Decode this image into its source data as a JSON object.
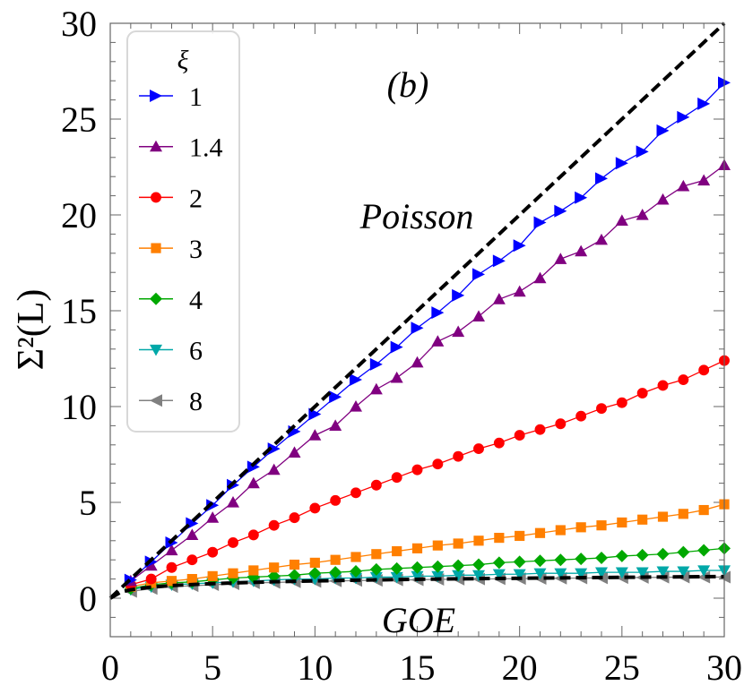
{
  "chart_data": {
    "type": "line",
    "title": "(b)",
    "xlabel": "",
    "ylabel": "Σ²(L)",
    "xlim": [
      0,
      30
    ],
    "ylim": [
      -2,
      30
    ],
    "x_ticks": [
      "0",
      "5",
      "10",
      "15",
      "20",
      "25",
      "30"
    ],
    "y_ticks": [
      "0",
      "5",
      "10",
      "15",
      "20",
      "25",
      "30"
    ],
    "grid": false,
    "legend": {
      "title": "ξ",
      "placement": "top-left"
    },
    "annotations": {
      "panel": "(b)",
      "poisson": "Poisson",
      "goe": "GOE"
    },
    "x": [
      1,
      2,
      3,
      4,
      5,
      6,
      7,
      8,
      9,
      10,
      11,
      12,
      13,
      14,
      15,
      16,
      17,
      18,
      19,
      20,
      21,
      22,
      23,
      24,
      25,
      26,
      27,
      28,
      29,
      30
    ],
    "series": [
      {
        "name": "1",
        "color": "#0000ff",
        "marker": "triangle-right",
        "values": [
          0.95,
          1.9,
          2.9,
          3.9,
          4.85,
          5.9,
          6.85,
          7.8,
          8.7,
          9.6,
          10.5,
          11.4,
          12.2,
          13.1,
          14.1,
          14.9,
          15.8,
          16.9,
          17.6,
          18.4,
          19.6,
          20.2,
          20.9,
          21.9,
          22.7,
          23.3,
          24.4,
          25.1,
          25.8,
          26.9
        ]
      },
      {
        "name": "1.4",
        "color": "#800080",
        "marker": "triangle-up",
        "values": [
          0.9,
          1.7,
          2.5,
          3.3,
          4.2,
          5.0,
          6.0,
          6.7,
          7.6,
          8.5,
          9.0,
          10.0,
          10.9,
          11.5,
          12.3,
          13.4,
          13.9,
          14.7,
          15.6,
          16.0,
          16.7,
          17.7,
          18.1,
          18.7,
          19.7,
          20.0,
          20.8,
          21.5,
          21.8,
          22.6
        ]
      },
      {
        "name": "2",
        "color": "#ff0000",
        "marker": "circle",
        "values": [
          0.7,
          1.0,
          1.6,
          2.0,
          2.4,
          2.9,
          3.3,
          3.8,
          4.2,
          4.7,
          5.1,
          5.5,
          5.9,
          6.3,
          6.7,
          7.0,
          7.4,
          7.8,
          8.1,
          8.5,
          8.8,
          9.1,
          9.5,
          9.9,
          10.2,
          10.7,
          11.1,
          11.4,
          11.9,
          12.4
        ]
      },
      {
        "name": "3",
        "color": "#ff7f00",
        "marker": "square",
        "values": [
          0.6,
          0.8,
          0.9,
          1.0,
          1.15,
          1.3,
          1.45,
          1.6,
          1.75,
          1.85,
          2.0,
          2.15,
          2.3,
          2.45,
          2.6,
          2.75,
          2.85,
          3.0,
          3.15,
          3.25,
          3.4,
          3.55,
          3.7,
          3.8,
          3.95,
          4.1,
          4.25,
          4.4,
          4.6,
          4.9
        ]
      },
      {
        "name": "4",
        "color": "#00a800",
        "marker": "diamond",
        "values": [
          0.5,
          0.7,
          0.8,
          0.85,
          0.95,
          1.05,
          1.1,
          1.15,
          1.2,
          1.3,
          1.35,
          1.4,
          1.5,
          1.55,
          1.6,
          1.65,
          1.7,
          1.75,
          1.85,
          1.9,
          1.95,
          2.0,
          2.05,
          2.1,
          2.2,
          2.25,
          2.3,
          2.4,
          2.5,
          2.6
        ]
      },
      {
        "name": "6",
        "color": "#00a8a8",
        "marker": "triangle-down",
        "values": [
          0.45,
          0.6,
          0.7,
          0.75,
          0.8,
          0.85,
          0.9,
          0.95,
          1.0,
          1.0,
          1.05,
          1.05,
          1.1,
          1.1,
          1.15,
          1.15,
          1.2,
          1.2,
          1.25,
          1.25,
          1.3,
          1.3,
          1.3,
          1.35,
          1.35,
          1.35,
          1.4,
          1.4,
          1.45,
          1.45
        ]
      },
      {
        "name": "8",
        "color": "#808080",
        "marker": "triangle-left",
        "values": [
          0.35,
          0.5,
          0.6,
          0.65,
          0.7,
          0.75,
          0.8,
          0.82,
          0.85,
          0.87,
          0.9,
          0.92,
          0.93,
          0.95,
          0.96,
          0.98,
          0.99,
          1.0,
          1.01,
          1.02,
          1.03,
          1.04,
          1.05,
          1.06,
          1.07,
          1.08,
          1.09,
          1.1,
          1.1,
          1.1
        ]
      }
    ],
    "reference_lines": [
      {
        "name": "Poisson",
        "style": "dashed",
        "color": "#000000",
        "x": [
          0,
          30
        ],
        "y": [
          0,
          30
        ]
      },
      {
        "name": "GOE",
        "style": "dashed",
        "color": "#000000",
        "x": [
          0,
          0.2,
          0.5,
          1,
          2,
          3,
          5,
          8,
          12,
          16,
          20,
          25,
          30
        ],
        "y": [
          0,
          0.12,
          0.31,
          0.44,
          0.58,
          0.66,
          0.76,
          0.86,
          0.94,
          1.0,
          1.04,
          1.09,
          1.13
        ]
      }
    ]
  }
}
